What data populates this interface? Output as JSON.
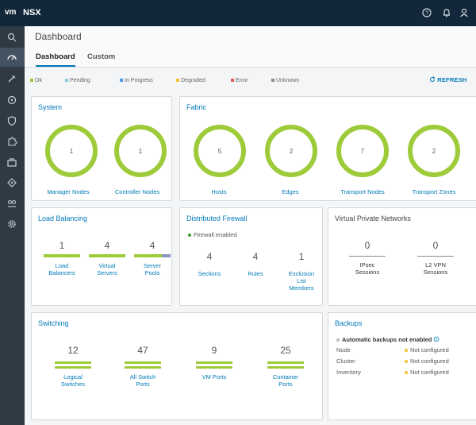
{
  "app": {
    "logo": "vm",
    "name": "NSX"
  },
  "topbar_icons": [
    "help-icon",
    "bell-icon",
    "user-icon"
  ],
  "sidebar": {
    "icons": [
      "search-icon",
      "dashboard-icon",
      "tools-icon",
      "network-icon",
      "shield-icon",
      "puzzle-icon",
      "briefcase-icon",
      "route-icon",
      "group-icon",
      "settings-icon"
    ]
  },
  "page": {
    "title": "Dashboard"
  },
  "tabs": {
    "dashboard": "Dashboard",
    "custom": "Custom"
  },
  "legend": {
    "ok": "Ok",
    "pending": "Pending",
    "in_progress": "In Progress",
    "degraded": "Degraded",
    "error": "Error",
    "unknown": "Unknown"
  },
  "colors": {
    "ok": "#9dcb39",
    "pending": "#89cbdf",
    "in_progress": "#4d9be6",
    "degraded": "#f5c233",
    "error": "#e05a5a",
    "unknown": "#8c8c8c",
    "accent": "#0079b8"
  },
  "refresh_label": "REFRESH",
  "system": {
    "title": "System",
    "items": [
      {
        "value": "1",
        "label": "Manager Nodes"
      },
      {
        "value": "1",
        "label": "Controller Nodes"
      }
    ]
  },
  "fabric": {
    "title": "Fabric",
    "items": [
      {
        "value": "5",
        "label": "Hosts"
      },
      {
        "value": "2",
        "label": "Edges"
      },
      {
        "value": "7",
        "label": "Transport Nodes"
      },
      {
        "value": "2",
        "label": "Transport Zones"
      }
    ]
  },
  "load_balancing": {
    "title": "Load Balancing",
    "items": [
      {
        "value": "1",
        "label1": "Load",
        "label2": "Balancers"
      },
      {
        "value": "4",
        "label1": "Virtual",
        "label2": "Servers"
      },
      {
        "value": "4",
        "label1": "Server",
        "label2": "Pools"
      }
    ]
  },
  "distributed_firewall": {
    "title": "Distributed Firewall",
    "status": "Firewall enabled",
    "items": [
      {
        "value": "4",
        "label1": "Sections"
      },
      {
        "value": "4",
        "label1": "Rules"
      },
      {
        "value": "1",
        "label1": "Exclusion",
        "label2": "List",
        "label3": "Members"
      }
    ]
  },
  "vpn": {
    "title": "Virtual Private Networks",
    "items": [
      {
        "value": "0",
        "label1": "IPsec",
        "label2": "Sessions"
      },
      {
        "value": "0",
        "label1": "L2 VPN",
        "label2": "Sessions"
      }
    ]
  },
  "switching": {
    "title": "Switching",
    "items": [
      {
        "value": "12",
        "label1": "Logical",
        "label2": "Switches"
      },
      {
        "value": "47",
        "label1": "All Switch",
        "label2": "Ports"
      },
      {
        "value": "9",
        "label1": "VM Ports"
      },
      {
        "value": "25",
        "label1": "Container",
        "label2": "Ports"
      }
    ]
  },
  "backups": {
    "title": "Backups",
    "status": "Automatic backups not enabled",
    "rows": [
      {
        "name": "Node",
        "value": "Not configured"
      },
      {
        "name": "Cluster",
        "value": "Not configured"
      },
      {
        "name": "Inventory",
        "value": "Not configured"
      }
    ]
  }
}
